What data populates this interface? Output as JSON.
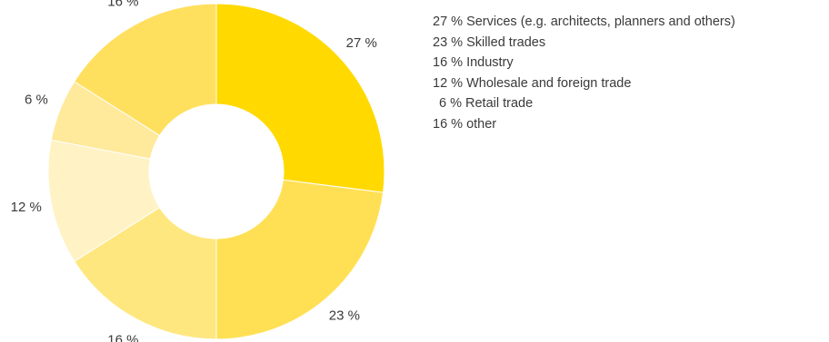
{
  "chart_data": {
    "type": "pie",
    "donut": true,
    "title": "",
    "slices": [
      {
        "value": 27,
        "value_label": "27 %",
        "label": "Services (e.g. architects, planners and others)",
        "color": "#FFD900"
      },
      {
        "value": 23,
        "value_label": "23 %",
        "label": "Skilled trades",
        "color": "#FFE054"
      },
      {
        "value": 16,
        "value_label": "16 %",
        "label": "Industry",
        "color": "#FFE780"
      },
      {
        "value": 12,
        "value_label": "12 %",
        "label": "Wholesale and foreign trade",
        "color": "#FFF2C4"
      },
      {
        "value": 6,
        "value_label": "6 %",
        "label": "Retail trade",
        "color": "#FFE99A"
      },
      {
        "value": 16,
        "value_label": "16 %",
        "label": "other",
        "color": "#FFDF5E"
      }
    ],
    "legend_position": "right",
    "slice_border_color": "#FFFFFF"
  }
}
